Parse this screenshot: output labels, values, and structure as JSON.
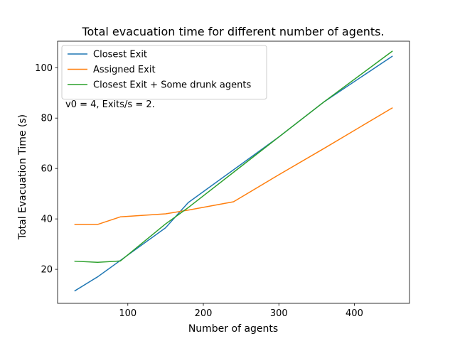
{
  "chart_data": {
    "type": "line",
    "title": "Total evacuation time for different number of agents.",
    "xlabel": "Number of agents",
    "ylabel": "Total Evacuation Time (s)",
    "xlim": [
      7,
      473
    ],
    "ylim": [
      6.5,
      110.5
    ],
    "xticks": [
      100,
      200,
      300,
      400
    ],
    "yticks": [
      20,
      40,
      60,
      80,
      100
    ],
    "grid": false,
    "legend_position": "top-left",
    "annotation": "v0 = 4, Exits/s = 2.",
    "series": [
      {
        "name": "Closest Exit",
        "color": "#1f77b4",
        "x": [
          30,
          60,
          90,
          150,
          180,
          240,
          300,
          360,
          450
        ],
        "y": [
          11.5,
          17,
          23.5,
          36.5,
          46.5,
          59.5,
          72.5,
          86.5,
          104.5
        ]
      },
      {
        "name": "Assigned Exit",
        "color": "#ff7f0e",
        "x": [
          30,
          60,
          90,
          150,
          180,
          240,
          300,
          360,
          450
        ],
        "y": [
          37.8,
          37.8,
          40.8,
          42,
          43.5,
          46.8,
          57.5,
          68,
          84
        ]
      },
      {
        "name": "Closest Exit + Some drunk agents",
        "color": "#2ca02c",
        "x": [
          30,
          60,
          90,
          150,
          180,
          240,
          300,
          360,
          450
        ],
        "y": [
          23.2,
          22.8,
          23.3,
          38,
          44.5,
          58.5,
          72.5,
          86.5,
          106.5
        ]
      }
    ]
  }
}
